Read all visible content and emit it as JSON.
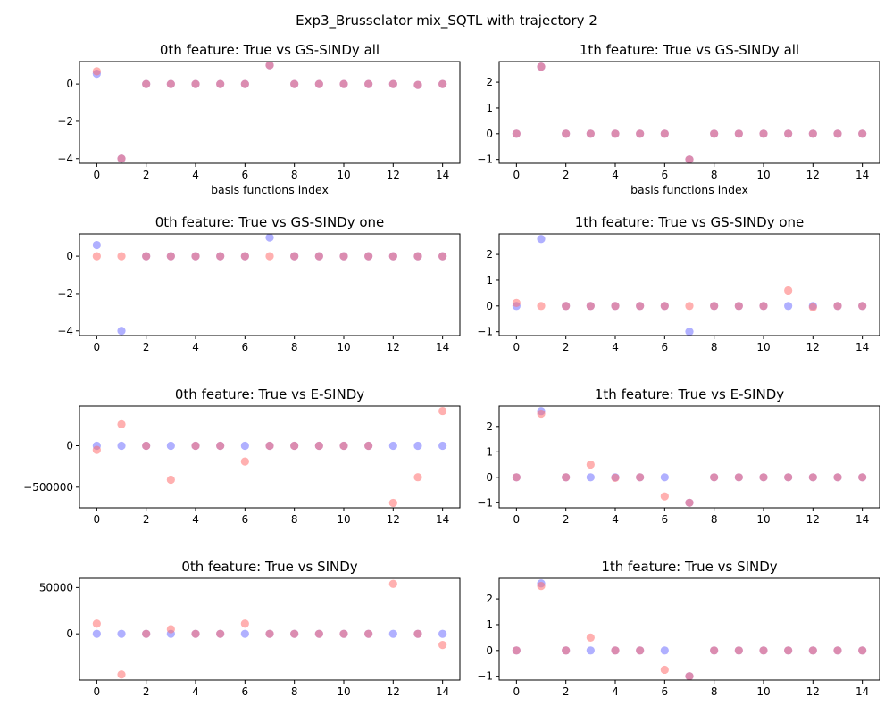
{
  "figure": {
    "title": "Exp3_Brusselator mix_SQTL with trajectory 2"
  },
  "colors": {
    "true": "#6f6fff",
    "pred": "#ff6f6f"
  },
  "chart_data": [
    {
      "type": "scatter",
      "title": "0th feature: True vs GS-SINDy all",
      "xlabel": "basis functions index",
      "xlim": [
        -0.7,
        14.7
      ],
      "ylim": [
        -4.25,
        1.2
      ],
      "xticks": [
        0,
        2,
        4,
        6,
        8,
        10,
        12,
        14
      ],
      "yticks": [
        -4,
        -2,
        0
      ],
      "ytick_labels": [
        "−4",
        "−2",
        "0"
      ],
      "x": [
        0,
        1,
        2,
        3,
        4,
        5,
        6,
        7,
        8,
        9,
        10,
        11,
        12,
        13,
        14
      ],
      "series": [
        {
          "role": "true",
          "values": [
            0.55,
            -4,
            0,
            0,
            0,
            0,
            0,
            1,
            0,
            0,
            0,
            0,
            0,
            -0.05,
            0
          ]
        },
        {
          "role": "pred",
          "values": [
            0.68,
            -4,
            0,
            0,
            0,
            0,
            0,
            1,
            0,
            0,
            0,
            0,
            0,
            -0.05,
            0
          ]
        }
      ]
    },
    {
      "type": "scatter",
      "title": "1th feature: True vs GS-SINDy all",
      "xlabel": "basis functions index",
      "xlim": [
        -0.7,
        14.7
      ],
      "ylim": [
        -1.15,
        2.8
      ],
      "xticks": [
        0,
        2,
        4,
        6,
        8,
        10,
        12,
        14
      ],
      "yticks": [
        -1,
        0,
        1,
        2
      ],
      "ytick_labels": [
        "−1",
        "0",
        "1",
        "2"
      ],
      "x": [
        0,
        1,
        2,
        3,
        4,
        5,
        6,
        7,
        8,
        9,
        10,
        11,
        12,
        13,
        14
      ],
      "series": [
        {
          "role": "true",
          "values": [
            0,
            2.6,
            0,
            0,
            0,
            0,
            0,
            -1,
            0,
            0,
            0,
            0,
            0,
            0,
            0
          ]
        },
        {
          "role": "pred",
          "values": [
            0,
            2.6,
            0,
            0,
            0,
            0,
            0,
            -1,
            0,
            0,
            0,
            0,
            0,
            0,
            0
          ]
        }
      ]
    },
    {
      "type": "scatter",
      "title": "0th feature: True vs GS-SINDy one",
      "xlabel": "",
      "xlim": [
        -0.7,
        14.7
      ],
      "ylim": [
        -4.25,
        1.2
      ],
      "xticks": [
        0,
        2,
        4,
        6,
        8,
        10,
        12,
        14
      ],
      "yticks": [
        -4,
        -2,
        0
      ],
      "ytick_labels": [
        "−4",
        "−2",
        "0"
      ],
      "x": [
        0,
        1,
        2,
        3,
        4,
        5,
        6,
        7,
        8,
        9,
        10,
        11,
        12,
        13,
        14
      ],
      "series": [
        {
          "role": "true",
          "values": [
            0.6,
            -4,
            0,
            0,
            0,
            0,
            0,
            1,
            0,
            0,
            0,
            0,
            0,
            0,
            0
          ]
        },
        {
          "role": "pred",
          "values": [
            0,
            0,
            0,
            0,
            0,
            0,
            0,
            0,
            0,
            0,
            0,
            0,
            0,
            0,
            0
          ]
        }
      ]
    },
    {
      "type": "scatter",
      "title": "1th feature: True vs GS-SINDy one",
      "xlabel": "",
      "xlim": [
        -0.7,
        14.7
      ],
      "ylim": [
        -1.15,
        2.8
      ],
      "xticks": [
        0,
        2,
        4,
        6,
        8,
        10,
        12,
        14
      ],
      "yticks": [
        -1,
        0,
        1,
        2
      ],
      "ytick_labels": [
        "−1",
        "0",
        "1",
        "2"
      ],
      "x": [
        0,
        1,
        2,
        3,
        4,
        5,
        6,
        7,
        8,
        9,
        10,
        11,
        12,
        13,
        14
      ],
      "series": [
        {
          "role": "true",
          "values": [
            0,
            2.6,
            0,
            0,
            0,
            0,
            0,
            -1,
            0,
            0,
            0,
            0,
            0,
            0,
            0
          ]
        },
        {
          "role": "pred",
          "values": [
            0.12,
            0,
            0,
            0,
            0,
            0,
            0,
            0,
            0,
            0,
            0,
            0.6,
            -0.05,
            0,
            0
          ]
        }
      ]
    },
    {
      "type": "scatter",
      "title": "0th feature: True vs E-SINDy",
      "xlabel": "",
      "xlim": [
        -0.7,
        14.7
      ],
      "ylim": [
        -750000,
        480000
      ],
      "xticks": [
        0,
        2,
        4,
        6,
        8,
        10,
        12,
        14
      ],
      "yticks": [
        -500000,
        0
      ],
      "ytick_labels": [
        "−500000",
        "0"
      ],
      "x": [
        0,
        1,
        2,
        3,
        4,
        5,
        6,
        7,
        8,
        9,
        10,
        11,
        12,
        13,
        14
      ],
      "series": [
        {
          "role": "true",
          "values": [
            0,
            0,
            0,
            0,
            0,
            0,
            0,
            0,
            0,
            0,
            0,
            0,
            0,
            0,
            0
          ]
        },
        {
          "role": "pred",
          "values": [
            -50000,
            260000,
            0,
            -410000,
            0,
            0,
            -190000,
            0,
            0,
            0,
            0,
            0,
            -690000,
            -380000,
            420000
          ]
        }
      ]
    },
    {
      "type": "scatter",
      "title": "1th feature: True vs E-SINDy",
      "xlabel": "",
      "xlim": [
        -0.7,
        14.7
      ],
      "ylim": [
        -1.2,
        2.8
      ],
      "xticks": [
        0,
        2,
        4,
        6,
        8,
        10,
        12,
        14
      ],
      "yticks": [
        -1,
        0,
        1,
        2
      ],
      "ytick_labels": [
        "−1",
        "0",
        "1",
        "2"
      ],
      "x": [
        0,
        1,
        2,
        3,
        4,
        5,
        6,
        7,
        8,
        9,
        10,
        11,
        12,
        13,
        14
      ],
      "series": [
        {
          "role": "true",
          "values": [
            0,
            2.6,
            0,
            0,
            0,
            0,
            0,
            -1,
            0,
            0,
            0,
            0,
            0,
            0,
            0
          ]
        },
        {
          "role": "pred",
          "values": [
            0,
            2.5,
            0,
            0.5,
            -0.02,
            0,
            -0.75,
            -1,
            0,
            0,
            0,
            0,
            0,
            0,
            0
          ]
        }
      ]
    },
    {
      "type": "scatter",
      "title": "0th feature: True vs SINDy",
      "xlabel": "",
      "xlim": [
        -0.7,
        14.7
      ],
      "ylim": [
        -50000,
        60000
      ],
      "xticks": [
        0,
        2,
        4,
        6,
        8,
        10,
        12,
        14
      ],
      "yticks": [
        0,
        50000
      ],
      "ytick_labels": [
        "0",
        "50000"
      ],
      "x": [
        0,
        1,
        2,
        3,
        4,
        5,
        6,
        7,
        8,
        9,
        10,
        11,
        12,
        13,
        14
      ],
      "series": [
        {
          "role": "true",
          "values": [
            0,
            0,
            0,
            0,
            0,
            0,
            0,
            0,
            0,
            0,
            0,
            0,
            0,
            0,
            0
          ]
        },
        {
          "role": "pred",
          "values": [
            11000,
            -44000,
            0,
            5000,
            0,
            0,
            11000,
            0,
            0,
            0,
            0,
            0,
            54000,
            0,
            -12000
          ]
        }
      ]
    },
    {
      "type": "scatter",
      "title": "1th feature: True vs SINDy",
      "xlabel": "",
      "xlim": [
        -0.7,
        14.7
      ],
      "ylim": [
        -1.15,
        2.8
      ],
      "xticks": [
        0,
        2,
        4,
        6,
        8,
        10,
        12,
        14
      ],
      "yticks": [
        -1,
        0,
        1,
        2
      ],
      "ytick_labels": [
        "−1",
        "0",
        "1",
        "2"
      ],
      "x": [
        0,
        1,
        2,
        3,
        4,
        5,
        6,
        7,
        8,
        9,
        10,
        11,
        12,
        13,
        14
      ],
      "series": [
        {
          "role": "true",
          "values": [
            0,
            2.6,
            0,
            0,
            0,
            0,
            0,
            -1,
            0,
            0,
            0,
            0,
            0,
            0,
            0
          ]
        },
        {
          "role": "pred",
          "values": [
            0,
            2.5,
            0,
            0.5,
            0,
            0,
            -0.75,
            -1,
            0,
            0,
            0,
            0,
            0,
            0,
            0
          ]
        }
      ]
    }
  ]
}
